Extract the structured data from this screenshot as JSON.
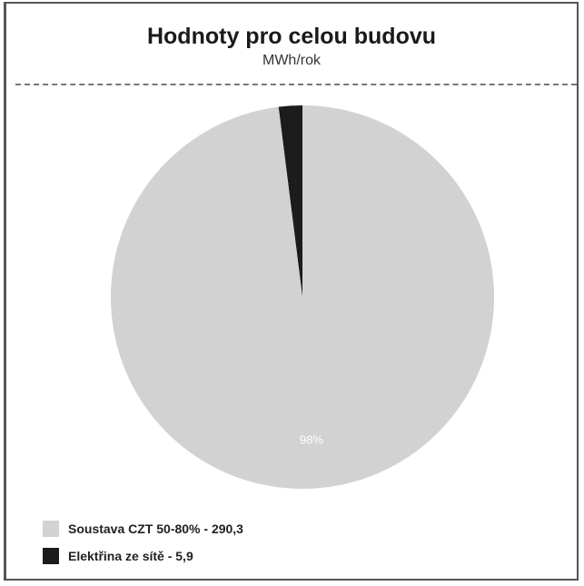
{
  "chart_data": {
    "type": "pie",
    "title": "Hodnoty pro celou budovu",
    "subtitle": "MWh/rok",
    "slices": [
      {
        "label": "Soustava CZT 50-80% - 290,3",
        "value": 290.3,
        "color": "#d2d2d2",
        "percent_label": "98%"
      },
      {
        "label": "Elektřina ze sítě - 5,9",
        "value": 5.9,
        "color": "#1c1c1c",
        "percent_label": ""
      }
    ],
    "legend_placement": "bottom-left"
  }
}
